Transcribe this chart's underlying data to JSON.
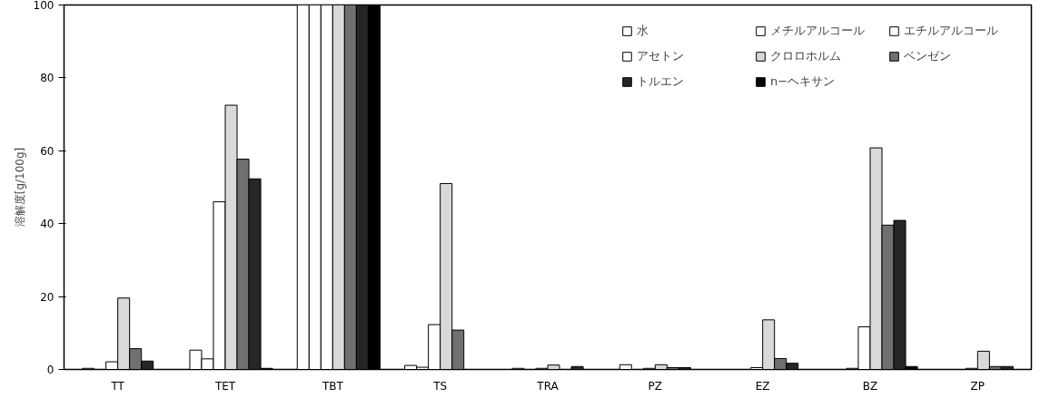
{
  "chart_data": {
    "type": "bar",
    "ylabel": "溶解度[g/100g]",
    "categories": [
      "TT",
      "TET",
      "TBT",
      "TS",
      "TRA",
      "PZ",
      "EZ",
      "BZ",
      "ZP"
    ],
    "ylim": [
      0,
      100
    ],
    "yticks": [
      0,
      20,
      40,
      60,
      80,
      100
    ],
    "grid": false,
    "legend": "top right",
    "series": [
      {
        "name": "水",
        "color": "#ffffff",
        "values": [
          null,
          null,
          null,
          null,
          null,
          null,
          null,
          null,
          null
        ]
      },
      {
        "name": "メチルアルコール",
        "color": "#ffffff",
        "values": [
          0.3,
          5.3,
          100,
          1.1,
          0.3,
          1.3,
          null,
          null,
          null
        ]
      },
      {
        "name": "エチルアルコール",
        "color": "#ffffff",
        "values": [
          null,
          2.9,
          100,
          0.6,
          null,
          null,
          null,
          0.3,
          null
        ]
      },
      {
        "name": "アセトン",
        "color": "#ffffff",
        "values": [
          2.1,
          46,
          100,
          12.3,
          0.3,
          0.3,
          0.5,
          11.7,
          0.3
        ]
      },
      {
        "name": "クロロホルム",
        "color": "#d9d9d9",
        "values": [
          19.6,
          72.5,
          100,
          51,
          1.2,
          1.3,
          13.6,
          60.8,
          5
        ]
      },
      {
        "name": "ベンゼン",
        "color": "#707070",
        "values": [
          5.7,
          57.7,
          100,
          10.8,
          null,
          0.5,
          3,
          39.6,
          0.8
        ]
      },
      {
        "name": "トルエン",
        "color": "#262626",
        "values": [
          2.3,
          52.3,
          100,
          null,
          0.8,
          0.5,
          1.7,
          40.9,
          0.8
        ]
      },
      {
        "name": "n−ヘキサン",
        "color": "#000000",
        "values": [
          null,
          0.3,
          100,
          null,
          null,
          null,
          null,
          0.8,
          null
        ]
      }
    ]
  }
}
